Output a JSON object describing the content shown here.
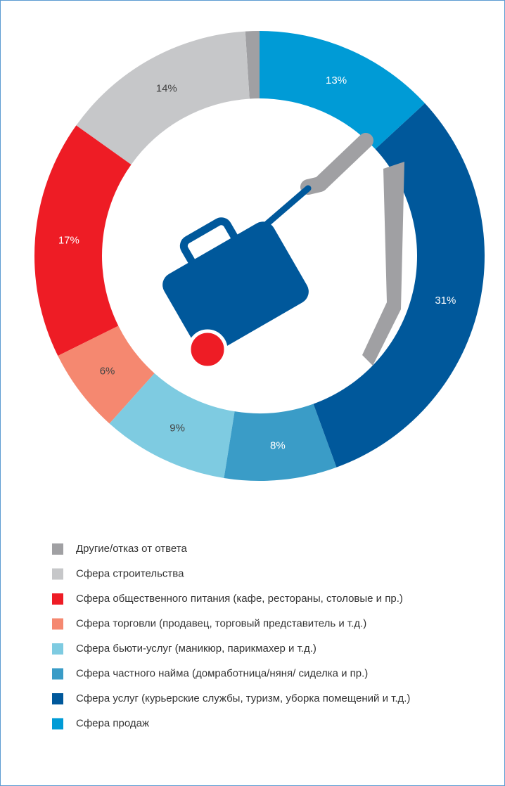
{
  "chart_data": {
    "type": "donut",
    "categories": [
      "Другие/отказ от ответа",
      "Сфера строительства",
      "Сфера общественного питания (кафе, рестораны, столовые и пр.)",
      "Сфера торговли (продавец, торговый представитель и т.д.)",
      "Сфера бьюти-услуг (маникюр, парикмахер и т.д.)",
      "Сфера частного найма (домработница/няня/ сиделка и пр.)",
      "Сфера услуг (курьерские службы, туризм, уборка помещений и т.д.)",
      "Сфера продаж"
    ],
    "values": [
      1,
      14,
      17,
      6,
      9,
      8,
      31,
      13
    ],
    "value_labels": [
      null,
      "14%",
      "17%",
      "6%",
      "9%",
      "8%",
      "31%",
      "13%"
    ],
    "colors": [
      "#a0a0a3",
      "#c6c7c9",
      "#ee1c25",
      "#f58870",
      "#7ecbe1",
      "#3a9cc7",
      "#00589b",
      "#009bd6"
    ],
    "direction": "counterclockwise",
    "legend": "bottom"
  }
}
